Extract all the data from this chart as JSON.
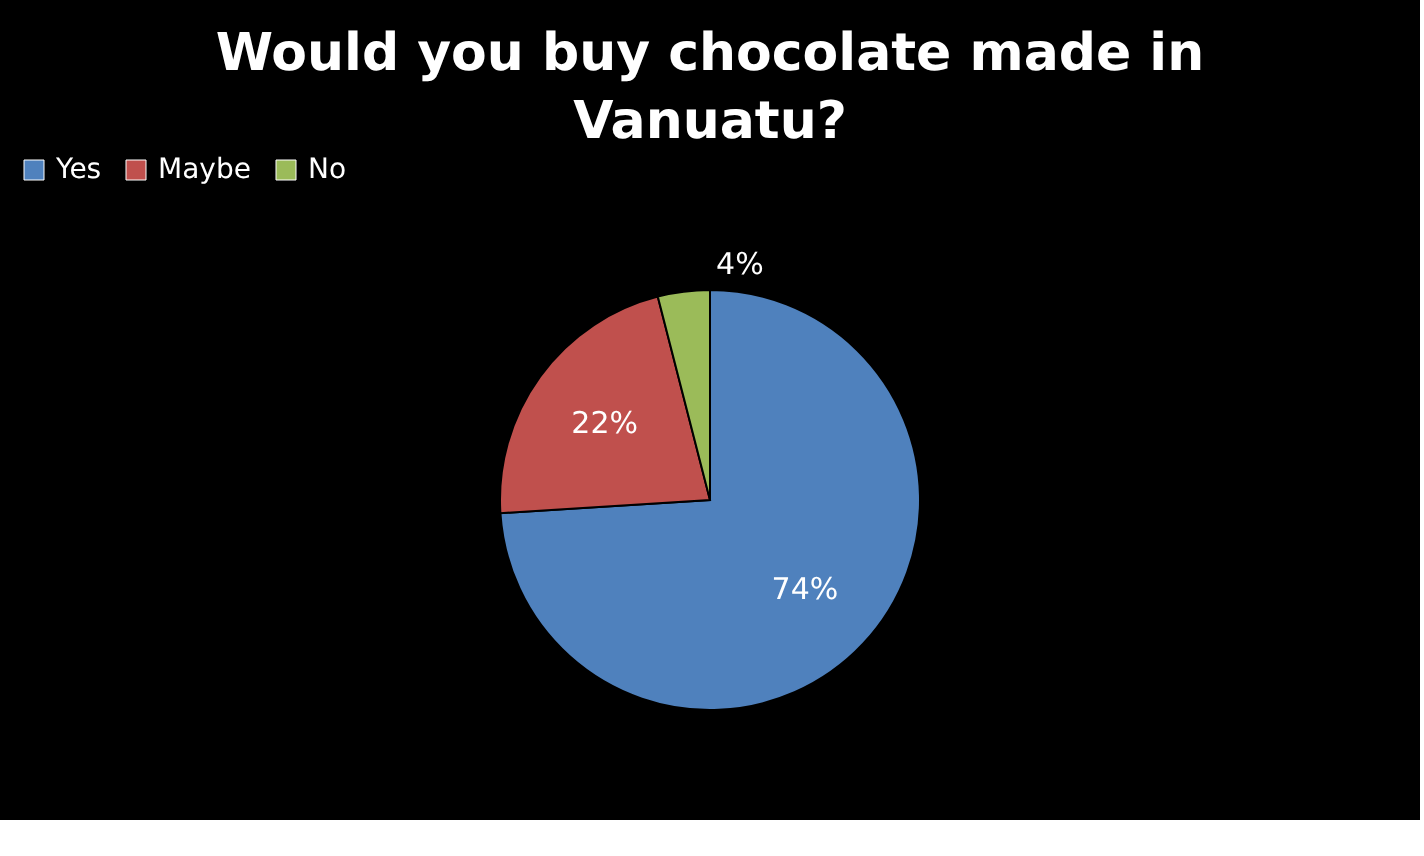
{
  "chart_data": {
    "type": "pie",
    "title": "Would you buy chocolate made in Vanuatu?",
    "categories": [
      "Yes",
      "Maybe",
      "No"
    ],
    "values": [
      74,
      22,
      4
    ],
    "colors": [
      "#4f81bd",
      "#c0504d",
      "#9bbb59"
    ],
    "value_labels": [
      "74%",
      "22%",
      "4%"
    ],
    "legend": "top"
  }
}
